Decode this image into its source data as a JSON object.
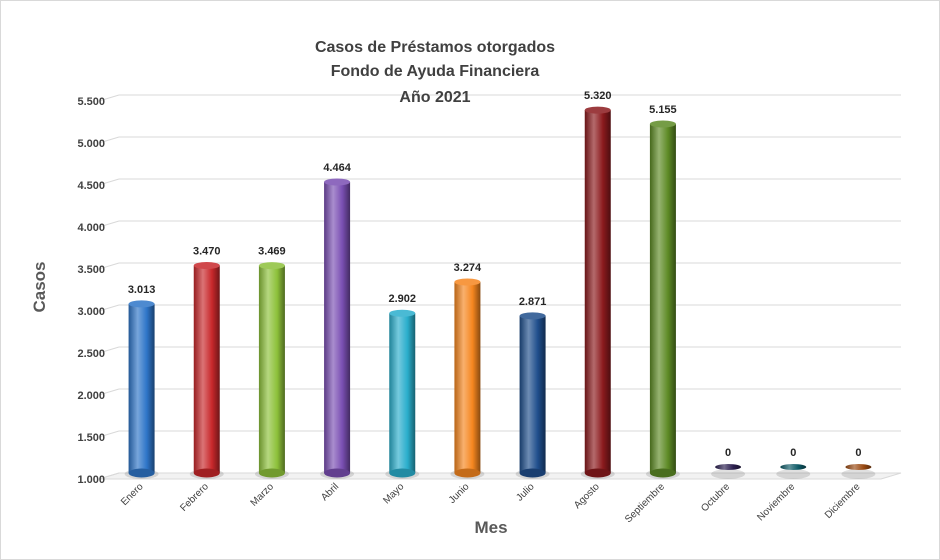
{
  "chart_data": {
    "type": "bar",
    "title": [
      "Casos de Préstamos otorgados",
      "Fondo de Ayuda Financiera",
      "Año 2021"
    ],
    "xlabel": "Mes",
    "ylabel": "Casos",
    "ylim": [
      1000,
      5500
    ],
    "yticks": [
      1000,
      1500,
      2000,
      2500,
      3000,
      3500,
      4000,
      4500,
      5000,
      5500
    ],
    "ytick_labels": [
      "1.000",
      "1.500",
      "2.000",
      "2.500",
      "3.000",
      "3.500",
      "4.000",
      "4.500",
      "5.000",
      "5.500"
    ],
    "grid": true,
    "categories": [
      "Enero",
      "Febrero",
      "Marzo",
      "Abril",
      "Mayo",
      "Junio",
      "Julio",
      "Agosto",
      "Septiembre",
      "Octubre",
      "Noviembre",
      "Diciembre"
    ],
    "values": [
      3013,
      3470,
      3469,
      4464,
      2902,
      3274,
      2871,
      5320,
      5155,
      0,
      0,
      0
    ],
    "value_labels": [
      "3.013",
      "3.470",
      "3.469",
      "4.464",
      "2.902",
      "3.274",
      "2.871",
      "5.320",
      "5.155",
      "0",
      "0",
      "0"
    ],
    "colors": [
      "#2e75c8",
      "#c8282b",
      "#8dc13a",
      "#7a4fb3",
      "#2aaecc",
      "#f5861f",
      "#1f4e8c",
      "#8b1a1d",
      "#5d8a25",
      "#2b1f4f",
      "#0e5a66",
      "#9a4a12"
    ]
  }
}
